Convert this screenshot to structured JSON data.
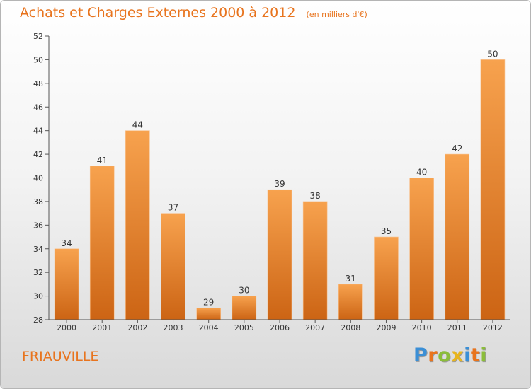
{
  "chart_data": {
    "type": "bar",
    "title": "Achats et Charges Externes 2000 à 2012",
    "unit_note": "(en milliers d'€)",
    "categories": [
      "2000",
      "2001",
      "2002",
      "2003",
      "2004",
      "2005",
      "2006",
      "2007",
      "2008",
      "2009",
      "2010",
      "2011",
      "2012"
    ],
    "values": [
      34,
      41,
      44,
      37,
      29,
      30,
      39,
      38,
      31,
      35,
      40,
      42,
      50
    ],
    "ylim": [
      28,
      52
    ],
    "yticks": [
      "28",
      "30",
      "32",
      "34",
      "36",
      "38",
      "40",
      "42",
      "44",
      "46",
      "48",
      "50",
      "52"
    ],
    "xlabel": "",
    "ylabel": "",
    "grid": false,
    "bar_color_top": "#f7a24e",
    "bar_color_bottom": "#cc6414"
  },
  "footer": {
    "commune": "FRIAUVILLE",
    "logo_letters": [
      {
        "ch": "P",
        "color": "#3b8fd6"
      },
      {
        "ch": "r",
        "color": "#e8741e"
      },
      {
        "ch": "o",
        "color": "#8bbd3a"
      },
      {
        "ch": "x",
        "color": "#e8b51e"
      },
      {
        "ch": "i",
        "color": "#3b8fd6"
      },
      {
        "ch": "t",
        "color": "#e8741e"
      },
      {
        "ch": "i",
        "color": "#8bbd3a"
      }
    ]
  },
  "colors": {
    "accent": "#e8741e",
    "axis": "#555555",
    "text": "#333333"
  }
}
